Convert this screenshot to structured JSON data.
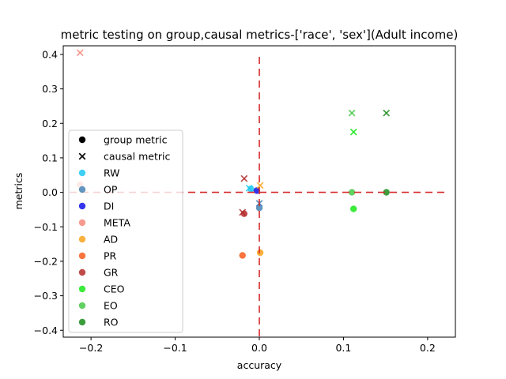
{
  "chart_data": {
    "type": "scatter",
    "title": "metric testing on group,causal metrics-['race', 'sex'](Adult income)",
    "xlabel": "accuracy",
    "ylabel": "metrics",
    "xlim": [
      -0.233,
      0.233
    ],
    "ylim": [
      -0.42,
      0.425
    ],
    "xticks": [
      -0.2,
      -0.1,
      0.0,
      0.1,
      0.2
    ],
    "xtick_labels": [
      "−0.2",
      "−0.1",
      "0.0",
      "0.1",
      "0.2"
    ],
    "yticks": [
      -0.4,
      -0.3,
      -0.2,
      -0.1,
      0.0,
      0.1,
      0.2,
      0.3,
      0.4
    ],
    "ytick_labels": [
      "−0.4",
      "−0.3",
      "−0.2",
      "−0.1",
      "0.0",
      "0.1",
      "0.2",
      "0.3",
      "0.4"
    ],
    "reference_lines": {
      "x": 0.0,
      "y": 0.0,
      "color": "#d62728",
      "style": "dashed"
    },
    "legend_position": "center-left",
    "marker_legend": [
      {
        "label": "group metric",
        "marker": "circle"
      },
      {
        "label": "causal metric",
        "marker": "x"
      }
    ],
    "series": [
      {
        "name": "RW",
        "color": "#1ec8f5",
        "group": [
          {
            "x": -0.01,
            "y": 0.01
          }
        ],
        "causal": [
          {
            "x": -0.012,
            "y": 0.012
          }
        ]
      },
      {
        "name": "OP",
        "color": "#4682b4",
        "group": [
          {
            "x": 0.0,
            "y": -0.045
          }
        ],
        "causal": [
          {
            "x": 0.0,
            "y": -0.032
          }
        ]
      },
      {
        "name": "DI",
        "color": "#1010e8",
        "group": [
          {
            "x": -0.003,
            "y": 0.005
          }
        ],
        "causal": []
      },
      {
        "name": "META",
        "color": "#f4887c",
        "group": [
          {
            "x": -0.213,
            "y": 0.022
          }
        ],
        "causal": [
          {
            "x": -0.213,
            "y": 0.405
          }
        ]
      },
      {
        "name": "AD",
        "color": "#f9a21a",
        "group": [
          {
            "x": 0.001,
            "y": -0.175
          }
        ],
        "causal": [
          {
            "x": 0.001,
            "y": 0.02
          }
        ]
      },
      {
        "name": "PR",
        "color": "#f85a1c",
        "group": [
          {
            "x": -0.02,
            "y": -0.183
          }
        ],
        "causal": []
      },
      {
        "name": "GR",
        "color": "#b52a2a",
        "group": [
          {
            "x": -0.018,
            "y": -0.062
          }
        ],
        "causal": [
          {
            "x": -0.018,
            "y": 0.04
          },
          {
            "x": -0.02,
            "y": -0.058
          }
        ]
      },
      {
        "name": "CEO",
        "color": "#19e619",
        "group": [
          {
            "x": 0.112,
            "y": -0.048
          }
        ],
        "causal": [
          {
            "x": 0.112,
            "y": 0.175
          }
        ]
      },
      {
        "name": "EO",
        "color": "#46c846",
        "group": [
          {
            "x": 0.11,
            "y": 0.0
          }
        ],
        "causal": [
          {
            "x": 0.11,
            "y": 0.23
          }
        ]
      },
      {
        "name": "RO",
        "color": "#1a8c1a",
        "group": [
          {
            "x": 0.151,
            "y": 0.0
          }
        ],
        "causal": [
          {
            "x": 0.151,
            "y": 0.23
          }
        ]
      }
    ]
  }
}
